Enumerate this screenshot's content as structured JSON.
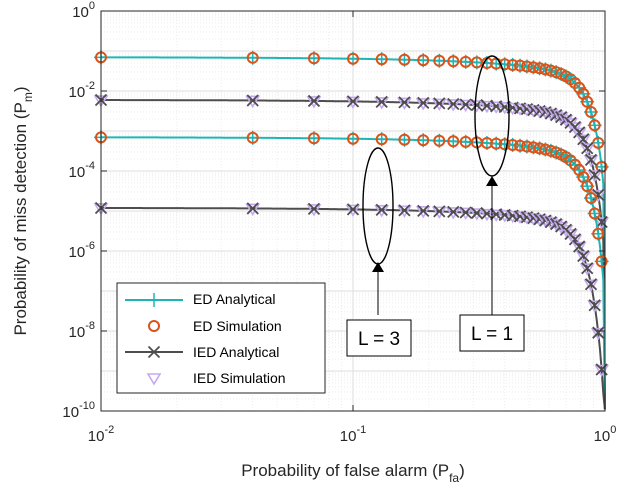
{
  "chart_data": {
    "type": "line",
    "xscale": "log",
    "yscale": "log",
    "xlim": [
      0.01,
      1
    ],
    "ylim": [
      1e-10,
      1
    ],
    "grid": true,
    "legend_position": "bottom-left",
    "xlabel": {
      "main": "Probability of false alarm (P",
      "sub": "fa",
      "end": ")"
    },
    "ylabel": {
      "main": "Probability of miss detection (P",
      "sub": "m",
      "end": ")"
    },
    "xticks": [
      {
        "base": "10",
        "exp": "-2",
        "value": 0.01
      },
      {
        "base": "10",
        "exp": "-1",
        "value": 0.1
      },
      {
        "base": "10",
        "exp": "0",
        "value": 1
      }
    ],
    "yticks": [
      {
        "base": "10",
        "exp": "-10",
        "value": 1e-10
      },
      {
        "base": "10",
        "exp": "-8",
        "value": 1e-08
      },
      {
        "base": "10",
        "exp": "-6",
        "value": 1e-06
      },
      {
        "base": "10",
        "exp": "-4",
        "value": 0.0001
      },
      {
        "base": "10",
        "exp": "-2",
        "value": 0.01
      },
      {
        "base": "10",
        "exp": "0",
        "value": 1
      }
    ],
    "legend": [
      {
        "label": "ED Analytical",
        "color": "#1fb5b5",
        "style": "line-plus"
      },
      {
        "label": "ED Simulation",
        "color": "#d9541a",
        "style": "circle"
      },
      {
        "label": "IED Analytical",
        "color": "#4d4d4d",
        "style": "line-x"
      },
      {
        "label": "IED Simulation",
        "color": "#c5a8f0",
        "style": "triangle"
      }
    ],
    "curves": [
      {
        "group": "ED",
        "L": 1,
        "start": 0.07,
        "cutoff": 0.0003
      },
      {
        "group": "IED",
        "L": 1,
        "start": 0.006,
        "cutoff": 1e-05
      },
      {
        "group": "ED",
        "L": 3,
        "start": 0.0007,
        "cutoff": 1e-06
      },
      {
        "group": "IED",
        "L": 3,
        "start": 1.2e-05,
        "cutoff": 1e-09
      }
    ],
    "annotations": [
      {
        "label": "L = 3"
      },
      {
        "label": "L = 1"
      }
    ]
  }
}
